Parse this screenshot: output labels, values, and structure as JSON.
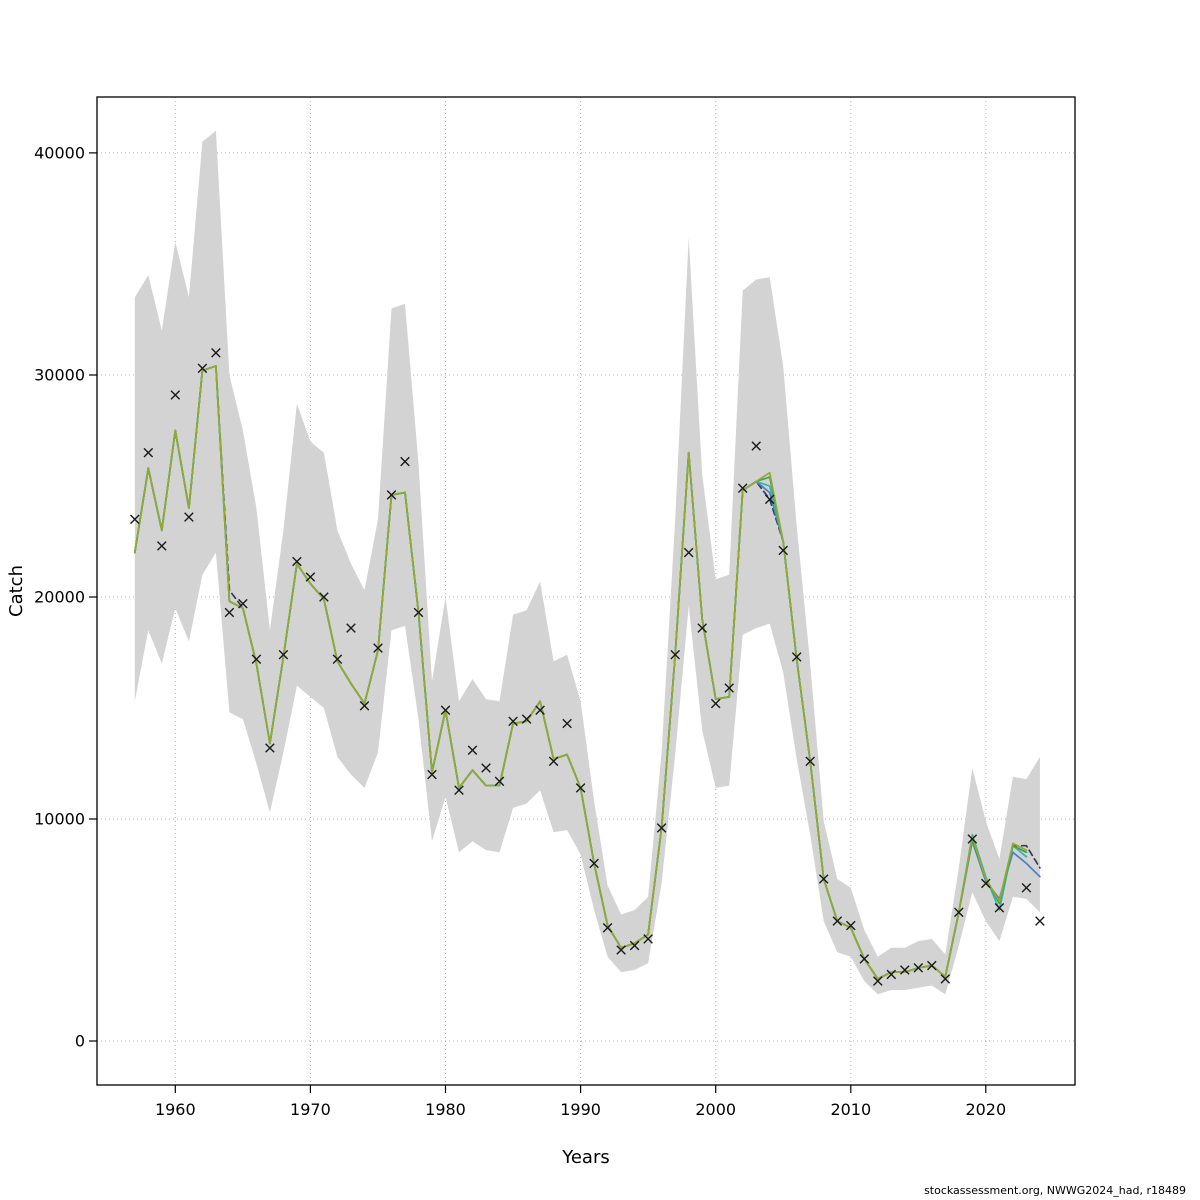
{
  "footer": {
    "source": "stockassessment.org, NWWG2024_had, r18489"
  },
  "chart_data": {
    "type": "line",
    "title": "",
    "xlabel": "Years",
    "ylabel": "Catch",
    "xlim": [
      1954.2,
      2026.6
    ],
    "ylim": [
      -1980,
      42520
    ],
    "xticks": [
      1960,
      1970,
      1980,
      1990,
      2000,
      2010,
      2020
    ],
    "yticks": [
      0,
      10000,
      20000,
      30000,
      40000
    ],
    "grid": true,
    "years": [
      1957,
      1958,
      1959,
      1960,
      1961,
      1962,
      1963,
      1964,
      1965,
      1966,
      1967,
      1968,
      1969,
      1970,
      1971,
      1972,
      1973,
      1974,
      1975,
      1976,
      1977,
      1978,
      1979,
      1980,
      1981,
      1982,
      1983,
      1984,
      1985,
      1986,
      1987,
      1988,
      1989,
      1990,
      1991,
      1992,
      1993,
      1994,
      1995,
      1996,
      1997,
      1998,
      1999,
      2000,
      2001,
      2002,
      2003,
      2004,
      2005,
      2006,
      2007,
      2008,
      2009,
      2010,
      2011,
      2012,
      2013,
      2014,
      2015,
      2016,
      2017,
      2018,
      2019,
      2020,
      2021,
      2022,
      2023,
      2024
    ],
    "band": {
      "name": "confidence-band",
      "color": "#d3d3d3",
      "lower": [
        15300,
        18500,
        17000,
        19500,
        18000,
        21000,
        22000,
        14800,
        14500,
        12500,
        10300,
        13000,
        16000,
        15500,
        15000,
        12800,
        12000,
        11400,
        13000,
        18500,
        18700,
        14500,
        9000,
        11000,
        8500,
        9000,
        8600,
        8500,
        10500,
        10700,
        11300,
        9400,
        9500,
        8400,
        5900,
        3800,
        3100,
        3200,
        3500,
        7100,
        12900,
        19600,
        14000,
        11400,
        11500,
        18300,
        18600,
        18800,
        16600,
        12700,
        9300,
        5400,
        4000,
        3800,
        2700,
        2100,
        2300,
        2300,
        2400,
        2500,
        2100,
        4300,
        6700,
        5400,
        4500,
        6500,
        6400,
        5800
      ],
      "upper": [
        33500,
        34500,
        32000,
        36000,
        33500,
        40500,
        41000,
        30000,
        27500,
        24000,
        18500,
        23000,
        28700,
        27000,
        26500,
        23000,
        21500,
        20300,
        23500,
        33000,
        33200,
        26000,
        16200,
        20000,
        15300,
        16300,
        15400,
        15300,
        19200,
        19400,
        20700,
        17100,
        17400,
        15300,
        10800,
        7000,
        5700,
        5900,
        6500,
        13000,
        23500,
        36200,
        25500,
        20800,
        21000,
        33800,
        34300,
        34400,
        30400,
        23200,
        17000,
        9900,
        7300,
        6900,
        5000,
        3800,
        4200,
        4200,
        4500,
        4600,
        3900,
        7800,
        12300,
        9900,
        8200,
        11900,
        11800,
        12800
      ]
    },
    "observed": {
      "name": "observed-catch",
      "marker": "x",
      "color": "#1a1a1a",
      "values": [
        23500,
        26500,
        22300,
        29100,
        23600,
        30300,
        31000,
        19300,
        19700,
        17200,
        13200,
        17400,
        21600,
        20900,
        20000,
        17200,
        18600,
        15100,
        17700,
        24600,
        26100,
        19300,
        12000,
        14900,
        11300,
        13100,
        12300,
        11700,
        14400,
        14500,
        14900,
        12600,
        14300,
        11400,
        8000,
        5100,
        4100,
        4300,
        4600,
        9600,
        17400,
        22000,
        18600,
        15200,
        15900,
        24900,
        26800,
        24400,
        22100,
        17300,
        12600,
        7300,
        5400,
        5200,
        3700,
        2700,
        3000,
        3200,
        3300,
        3400,
        2800,
        5800,
        9100,
        7100,
        6000,
        null,
        6900,
        5400
      ]
    },
    "fits": [
      {
        "name": "fit-dark",
        "color": "#39395c",
        "dash": "6 4",
        "values": [
          22000,
          25800,
          23000,
          27500,
          24000,
          30200,
          30400,
          20300,
          19500,
          17000,
          13400,
          17300,
          21500,
          20600,
          19900,
          17100,
          16100,
          15200,
          17600,
          24600,
          24700,
          19300,
          12100,
          14900,
          11400,
          12200,
          11500,
          11500,
          14300,
          14400,
          15300,
          12700,
          12900,
          11400,
          8000,
          5200,
          4200,
          4400,
          4800,
          9600,
          17400,
          26500,
          19000,
          15400,
          15500,
          24800,
          25200,
          24400,
          22500,
          17200,
          12600,
          7300,
          5400,
          5100,
          3700,
          2800,
          3100,
          3100,
          3300,
          3400,
          2900,
          5800,
          9100,
          7300,
          6300,
          8800,
          8800,
          7800
        ]
      },
      {
        "name": "fit-blue",
        "color": "#4a7fc1",
        "dash": "",
        "values": [
          22000,
          25800,
          23000,
          27500,
          24000,
          30200,
          30400,
          19800,
          19500,
          17000,
          13400,
          17300,
          21500,
          20600,
          19900,
          17100,
          16100,
          15200,
          17600,
          24600,
          24700,
          19300,
          12100,
          14900,
          11400,
          12200,
          11500,
          11500,
          14300,
          14400,
          15300,
          12700,
          12900,
          11400,
          8000,
          5200,
          4200,
          4400,
          4800,
          9600,
          17400,
          26500,
          19000,
          15400,
          15500,
          24800,
          25200,
          24700,
          22500,
          17200,
          12600,
          7300,
          5400,
          5100,
          3700,
          2800,
          3100,
          3100,
          3300,
          3400,
          2900,
          5800,
          9000,
          7200,
          6400,
          8500,
          8000,
          7400
        ]
      },
      {
        "name": "fit-teal",
        "color": "#35b6b6",
        "dash": "",
        "values": [
          22000,
          25800,
          23000,
          27500,
          24000,
          30200,
          30400,
          19800,
          19500,
          17000,
          13400,
          17300,
          21500,
          20600,
          19900,
          17100,
          16100,
          15200,
          17600,
          24600,
          24700,
          19300,
          12100,
          14900,
          11400,
          12200,
          11500,
          11500,
          14300,
          14400,
          15300,
          12700,
          12900,
          11400,
          8000,
          5200,
          4200,
          4400,
          4800,
          9600,
          17400,
          26500,
          19000,
          15400,
          15500,
          24800,
          25200,
          25000,
          22500,
          17200,
          12600,
          7300,
          5400,
          5100,
          3700,
          2800,
          3100,
          3100,
          3300,
          3400,
          2900,
          5800,
          9300,
          7400,
          5900,
          8800,
          8300,
          null
        ]
      },
      {
        "name": "fit-green",
        "color": "#3fa34d",
        "dash": "",
        "values": [
          22000,
          25800,
          23000,
          27500,
          24000,
          30200,
          30400,
          19800,
          19500,
          17000,
          13400,
          17300,
          21500,
          20600,
          19900,
          17100,
          16100,
          15200,
          17600,
          24600,
          24700,
          19300,
          12100,
          14900,
          11400,
          12200,
          11500,
          11500,
          14300,
          14400,
          15300,
          12700,
          12900,
          11400,
          8000,
          5200,
          4200,
          4400,
          4800,
          9600,
          17400,
          26500,
          19000,
          15400,
          15500,
          24800,
          25200,
          25400,
          22500,
          17200,
          12600,
          7300,
          5400,
          5100,
          3700,
          2800,
          3100,
          3100,
          3300,
          3400,
          2900,
          5800,
          9100,
          7300,
          6200,
          8800,
          8500,
          null
        ]
      },
      {
        "name": "fit-olive",
        "color": "#96a832",
        "dash": "",
        "values": [
          22000,
          25800,
          23000,
          27500,
          24000,
          30200,
          30400,
          19800,
          19500,
          17000,
          13400,
          17300,
          21500,
          20600,
          19900,
          17100,
          16100,
          15200,
          17600,
          24600,
          24700,
          19300,
          12100,
          14900,
          11400,
          12200,
          11500,
          11500,
          14300,
          14400,
          15300,
          12700,
          12900,
          11400,
          8000,
          5200,
          4200,
          4400,
          4800,
          9600,
          17400,
          26500,
          19000,
          15400,
          15500,
          24800,
          25200,
          25600,
          22500,
          17200,
          12600,
          7300,
          5400,
          5100,
          3700,
          2800,
          3100,
          3100,
          3300,
          3400,
          2900,
          5800,
          9200,
          7300,
          6300,
          8900,
          8600,
          null
        ]
      }
    ]
  }
}
